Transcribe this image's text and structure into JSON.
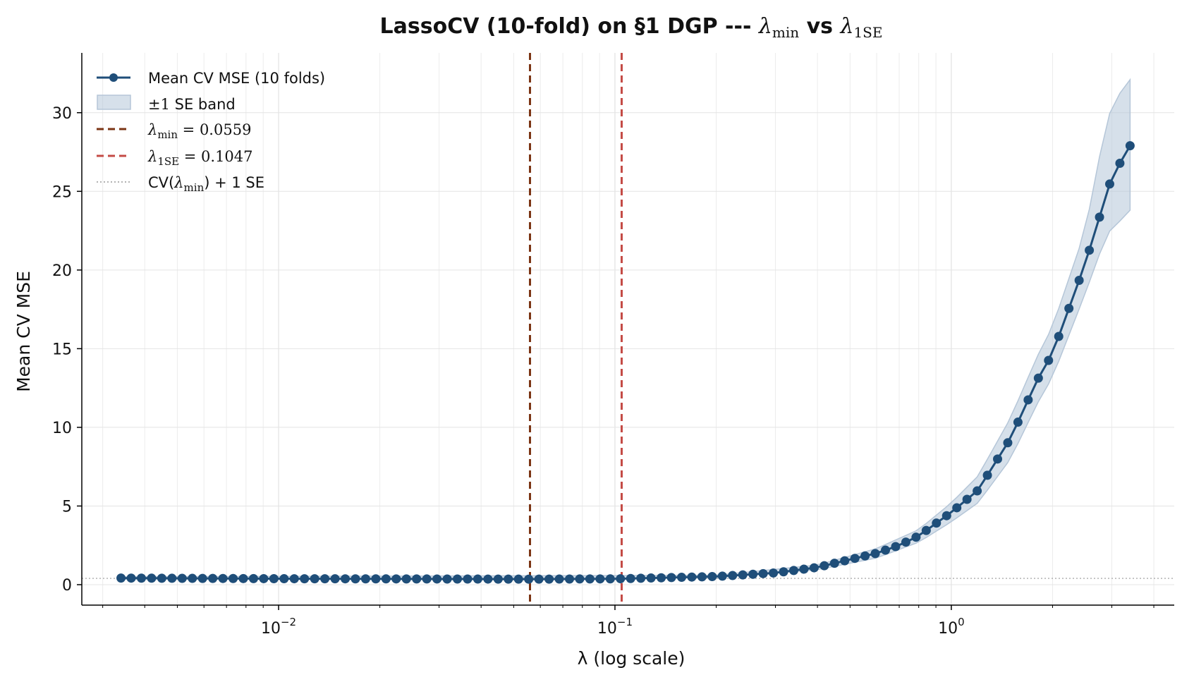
{
  "chart_data": {
    "type": "line",
    "title": {
      "prefix": "LassoCV (10-fold) on §1 DGP --- ",
      "sym1": "λ",
      "sub1": "min",
      "middle": " vs ",
      "sym2": "λ",
      "sub2": "1SE"
    },
    "xlabel": "λ (log scale)",
    "ylabel": "Mean CV MSE",
    "xscale": "log",
    "xlim": [
      0.0026,
      4.6
    ],
    "ylim": [
      -1.3,
      33.8
    ],
    "yticks": [
      "0",
      "5",
      "10",
      "15",
      "20",
      "25",
      "30"
    ],
    "xticks": [
      {
        "base": "10",
        "exp": "−2"
      },
      {
        "base": "10",
        "exp": "−1"
      },
      {
        "base": "10",
        "exp": "0"
      }
    ],
    "grid": true,
    "legend_position": "top-left",
    "colors": {
      "mean": "#1f4e79",
      "band": "#b5c6d8",
      "lambda_min": "#7b3414",
      "lambda_1se": "#c44b45",
      "threshold": "#999999"
    },
    "series": [
      {
        "name": "Mean CV MSE (10 folds)",
        "kind": "line-markers",
        "lambda_range": [
          0.0034,
          3.4
        ],
        "num_points": 100,
        "x_key_lambdas": [
          0.0034,
          0.01,
          0.0559,
          0.1,
          0.2,
          0.3,
          0.4,
          0.5,
          0.6,
          0.7,
          0.8,
          1.0,
          1.2,
          1.5,
          1.8,
          2.0,
          2.5,
          3.0,
          3.4
        ],
        "y_key_values": [
          0.42,
          0.38,
          0.35,
          0.37,
          0.52,
          0.75,
          1.1,
          1.6,
          2.0,
          2.5,
          3.1,
          4.6,
          6.0,
          9.3,
          13.0,
          14.7,
          20.4,
          25.9,
          27.9
        ]
      },
      {
        "name_prefix": "±1",
        "name_suffix": " SE band",
        "kind": "band",
        "x_key_lambdas": [
          0.0034,
          0.2,
          0.4,
          0.6,
          0.8,
          1.0,
          1.2,
          1.5,
          1.8,
          2.0,
          2.5,
          2.9,
          3.2,
          3.4
        ],
        "lower": [
          0.35,
          0.45,
          0.95,
          1.7,
          2.7,
          4.0,
          5.2,
          8.0,
          11.5,
          13.2,
          18.5,
          22.3,
          23.2,
          23.8
        ],
        "upper": [
          0.5,
          0.6,
          1.25,
          2.3,
          3.5,
          5.2,
          6.9,
          10.6,
          14.5,
          16.4,
          22.5,
          29.6,
          31.4,
          32.1
        ]
      }
    ],
    "vlines": [
      {
        "name": "λ_min",
        "label_sym": "λ",
        "label_sub": "min",
        "label_value": " = 0.0559",
        "x": 0.0559,
        "style": "dashed"
      },
      {
        "name": "λ_1SE",
        "label_sym": "λ",
        "label_sub": "1SE",
        "label_value": " = 0.1047",
        "x": 0.1047,
        "style": "dashed"
      }
    ],
    "hline": {
      "name": "CV(λmin) + 1 SE",
      "label_prefix": "CV(",
      "label_sym": "λ",
      "label_sub": "min",
      "label_suffix": ") + 1 SE",
      "y": 0.4,
      "style": "dotted"
    }
  }
}
